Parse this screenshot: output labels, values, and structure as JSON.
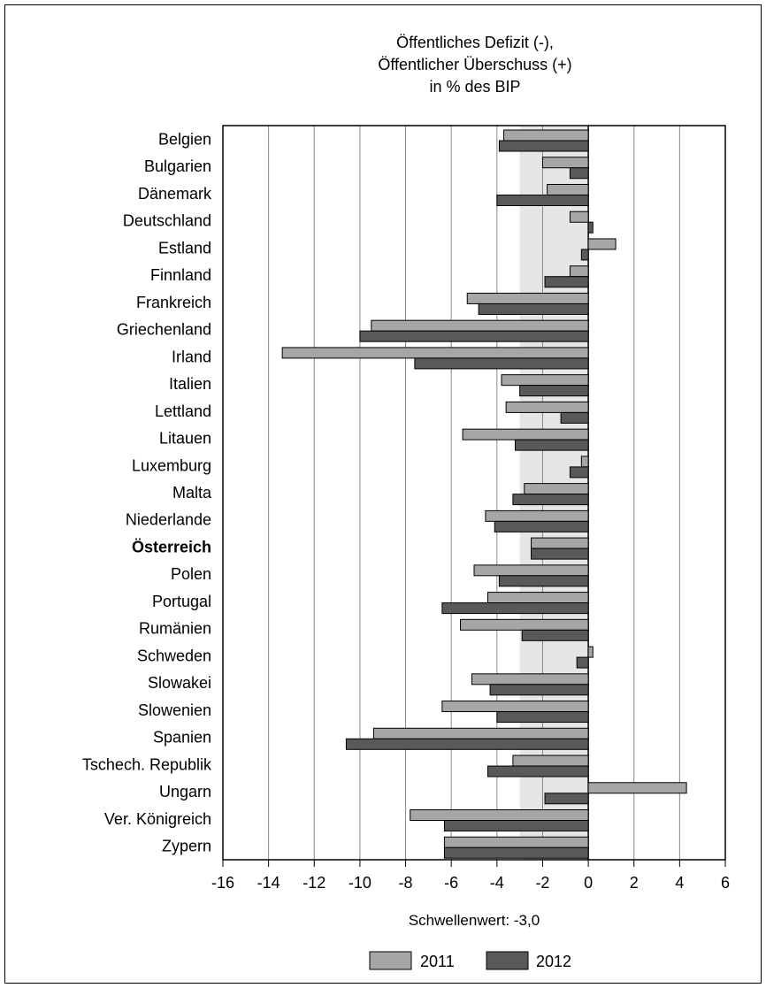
{
  "chart_data": {
    "type": "bar",
    "orientation": "horizontal",
    "title": [
      "Öffentliches Defizit (-),",
      "Öffentlicher Überschuss (+)",
      "in % des BIP"
    ],
    "categories": [
      "Belgien",
      "Bulgarien",
      "Dänemark",
      "Deutschland",
      "Estland",
      "Finnland",
      "Frankreich",
      "Griechenland",
      "Irland",
      "Italien",
      "Lettland",
      "Litauen",
      "Luxemburg",
      "Malta",
      "Niederlande",
      "Österreich",
      "Polen",
      "Portugal",
      "Rumänien",
      "Schweden",
      "Slowakei",
      "Slowenien",
      "Spanien",
      "Tschech. Republik",
      "Ungarn",
      "Ver. Königreich",
      "Zypern"
    ],
    "highlight_category": "Österreich",
    "series": [
      {
        "name": "2011",
        "color": "#a6a6a6",
        "values": [
          -3.7,
          -2.0,
          -1.8,
          -0.8,
          1.2,
          -0.8,
          -5.3,
          -9.5,
          -13.4,
          -3.8,
          -3.6,
          -5.5,
          -0.3,
          -2.8,
          -4.5,
          -2.5,
          -5.0,
          -4.4,
          -5.6,
          0.2,
          -5.1,
          -6.4,
          -9.4,
          -3.3,
          4.3,
          -7.8,
          -6.3
        ]
      },
      {
        "name": "2012",
        "color": "#595959",
        "values": [
          -3.9,
          -0.8,
          -4.0,
          0.2,
          -0.3,
          -1.9,
          -4.8,
          -10.0,
          -7.6,
          -3.0,
          -1.2,
          -3.2,
          -0.8,
          -3.3,
          -4.1,
          -2.5,
          -3.9,
          -6.4,
          -2.9,
          -0.5,
          -4.3,
          -4.0,
          -10.6,
          -4.4,
          -1.9,
          -6.3,
          -6.3
        ]
      }
    ],
    "xlim": [
      -16,
      6
    ],
    "xticks": [
      "-16",
      "-14",
      "-12",
      "-10",
      "-8",
      "-6",
      "-4",
      "-2",
      "0",
      "2",
      "4",
      "6"
    ],
    "threshold": {
      "value": -3.0,
      "label": "Schwellenwert: -3,0"
    },
    "grid": true,
    "legend_position": "bottom"
  }
}
